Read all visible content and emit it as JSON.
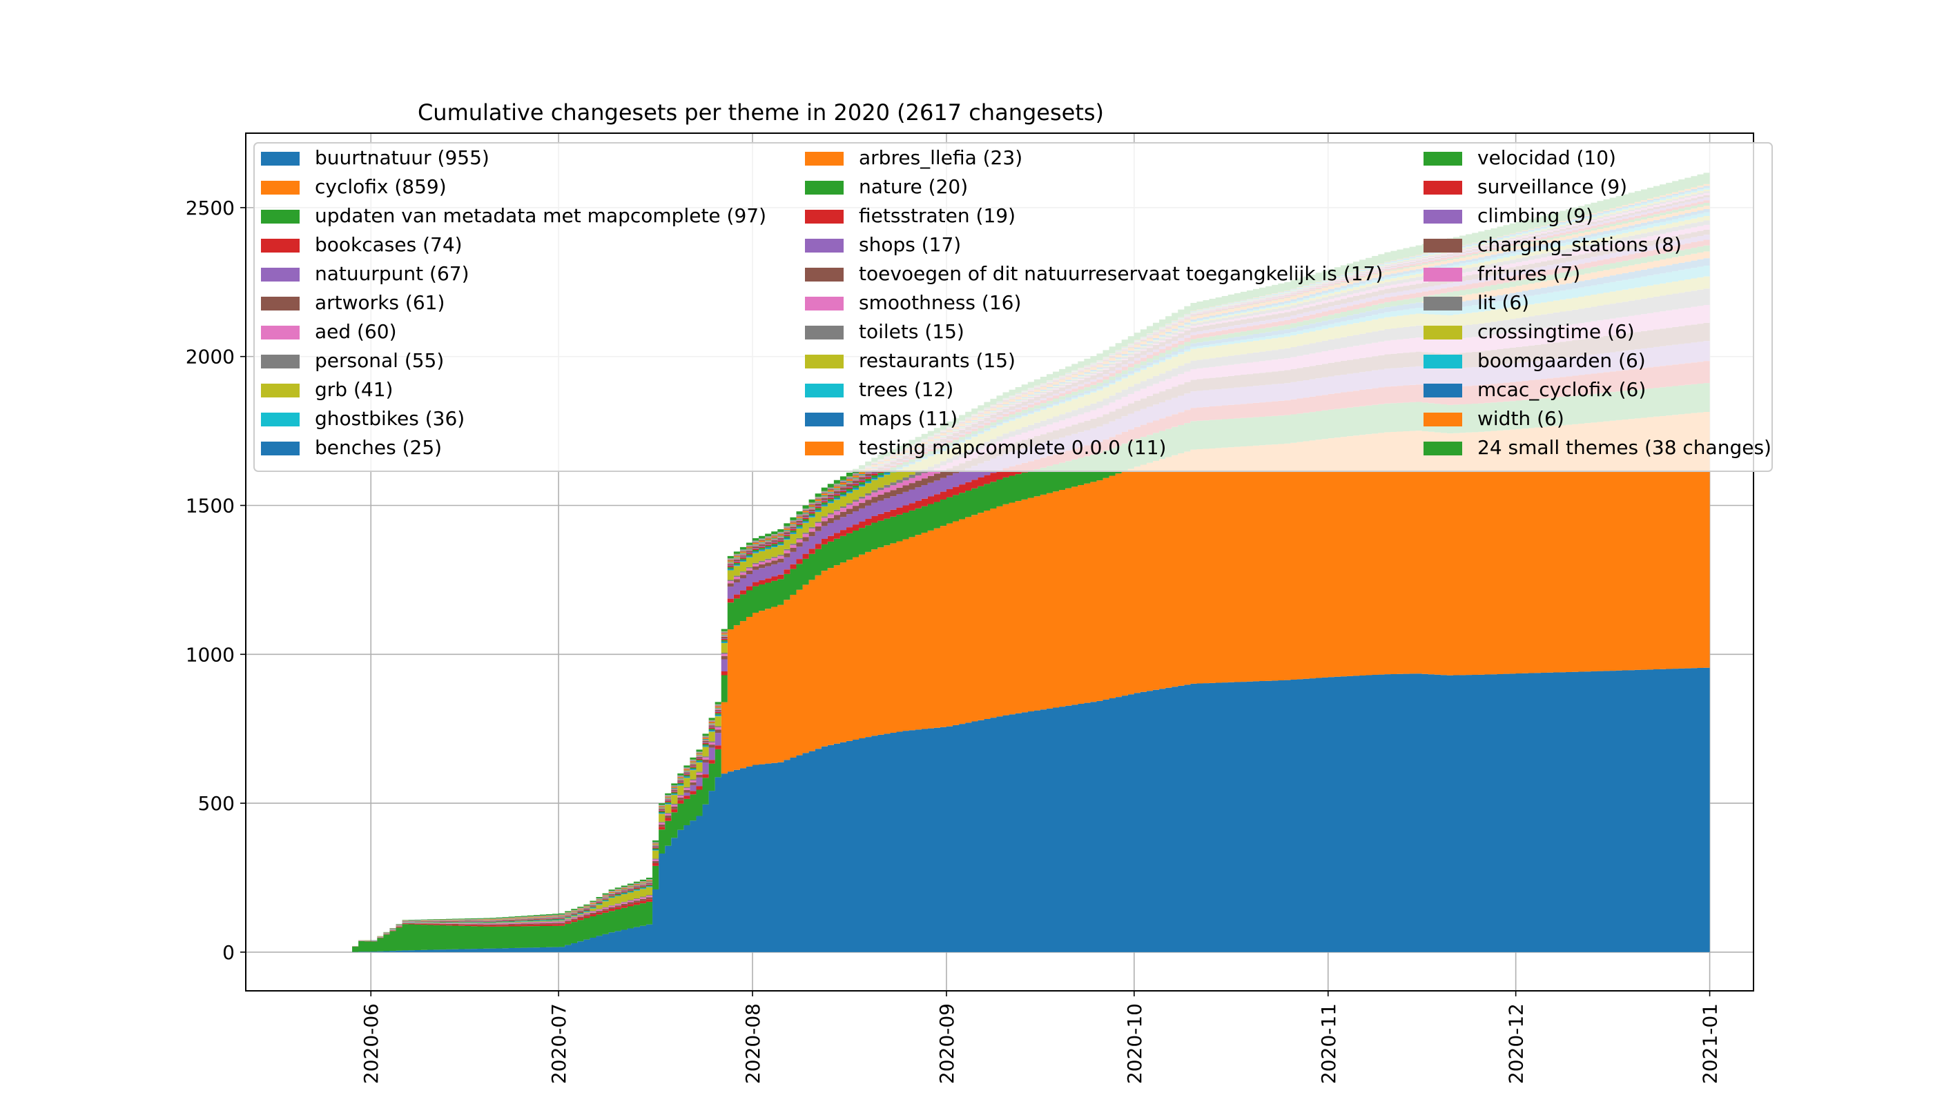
{
  "chart_data": {
    "type": "area",
    "stacked": true,
    "title": "Cumulative changesets per theme in 2020 (2617 changesets)",
    "xlabel": "",
    "ylabel": "",
    "x_start": "2020-05-28",
    "x_end": "2020-12-31",
    "xlim": [
      "2020-05-12",
      "2021-01-08"
    ],
    "ylim": [
      -130,
      2750
    ],
    "x_ticks": [
      "2020-06-01",
      "2020-07-01",
      "2020-08-01",
      "2020-09-01",
      "2020-10-01",
      "2020-11-01",
      "2020-12-01",
      "2021-01-01"
    ],
    "x_tick_labels": [
      "2020-06",
      "2020-07",
      "2020-08",
      "2020-09",
      "2020-10",
      "2020-11",
      "2020-12",
      "2021-01"
    ],
    "y_ticks": [
      0,
      500,
      1000,
      1500,
      2000,
      2500
    ],
    "grid": true,
    "legend": "top, three columns",
    "total_profile": [
      [
        "2020-05-28",
        0
      ],
      [
        "2020-05-30",
        40
      ],
      [
        "2020-06-01",
        40
      ],
      [
        "2020-06-06",
        108
      ],
      [
        "2020-06-20",
        115
      ],
      [
        "2020-07-01",
        130
      ],
      [
        "2020-07-05",
        160
      ],
      [
        "2020-07-09",
        210
      ],
      [
        "2020-07-15",
        250
      ],
      [
        "2020-07-17",
        500
      ],
      [
        "2020-07-20",
        600
      ],
      [
        "2020-07-23",
        680
      ],
      [
        "2020-07-26",
        840
      ],
      [
        "2020-07-28",
        1330
      ],
      [
        "2020-08-01",
        1390
      ],
      [
        "2020-08-05",
        1420
      ],
      [
        "2020-08-09",
        1500
      ],
      [
        "2020-08-12",
        1560
      ],
      [
        "2020-08-20",
        1660
      ],
      [
        "2020-08-30",
        1760
      ],
      [
        "2020-09-10",
        1880
      ],
      [
        "2020-09-25",
        2010
      ],
      [
        "2020-10-01",
        2080
      ],
      [
        "2020-10-10",
        2180
      ],
      [
        "2020-10-25",
        2250
      ],
      [
        "2020-11-10",
        2350
      ],
      [
        "2020-11-25",
        2420
      ],
      [
        "2020-12-10",
        2500
      ],
      [
        "2020-12-31",
        2617
      ]
    ],
    "series": [
      {
        "name": "buurtnatuur (955)",
        "total": 955,
        "color": "#1f77b4",
        "profile": [
          [
            "2020-05-28",
            0
          ],
          [
            "2020-07-01",
            20
          ],
          [
            "2020-07-09",
            80
          ],
          [
            "2020-07-15",
            110
          ],
          [
            "2020-07-17",
            370
          ],
          [
            "2020-07-23",
            470
          ],
          [
            "2020-07-27",
            600
          ],
          [
            "2020-07-28",
            610
          ],
          [
            "2020-08-01",
            640
          ],
          [
            "2020-08-09",
            700
          ],
          [
            "2020-09-01",
            790
          ],
          [
            "2020-10-01",
            870
          ],
          [
            "2020-11-01",
            910
          ],
          [
            "2020-12-01",
            935
          ],
          [
            "2020-12-31",
            955
          ]
        ]
      },
      {
        "name": "cyclofix (859)",
        "total": 859,
        "color": "#ff7f0e",
        "profile": [
          [
            "2020-05-28",
            0
          ],
          [
            "2020-07-26",
            0
          ],
          [
            "2020-07-28",
            480
          ],
          [
            "2020-08-01",
            520
          ],
          [
            "2020-08-10",
            600
          ],
          [
            "2020-08-25",
            660
          ],
          [
            "2020-09-01",
            710
          ],
          [
            "2020-10-01",
            760
          ],
          [
            "2020-11-01",
            790
          ],
          [
            "2020-12-01",
            820
          ],
          [
            "2020-12-31",
            859
          ]
        ]
      },
      {
        "name": "updaten van metadata met mapcomplete (97)",
        "total": 97,
        "color": "#2ca02c",
        "profile": [
          [
            "2020-05-28",
            0
          ],
          [
            "2020-05-30",
            30
          ],
          [
            "2020-06-06",
            82
          ],
          [
            "2020-07-01",
            82
          ],
          [
            "2020-07-05",
            85
          ],
          [
            "2020-07-15",
            90
          ],
          [
            "2020-12-31",
            97
          ]
        ]
      },
      {
        "name": "bookcases (74)",
        "total": 74,
        "color": "#d62728",
        "profile": [
          [
            "2020-05-28",
            0
          ],
          [
            "2020-07-15",
            10
          ],
          [
            "2020-08-01",
            14
          ],
          [
            "2020-09-01",
            28
          ],
          [
            "2020-10-01",
            40
          ],
          [
            "2020-11-01",
            52
          ],
          [
            "2020-12-01",
            64
          ],
          [
            "2020-12-31",
            74
          ]
        ]
      },
      {
        "name": "natuurpunt (67)",
        "total": 67,
        "color": "#9467bd",
        "profile": [
          [
            "2020-05-28",
            0
          ],
          [
            "2020-07-20",
            0
          ],
          [
            "2020-07-24",
            40
          ],
          [
            "2020-08-15",
            45
          ],
          [
            "2020-09-01",
            48
          ],
          [
            "2020-10-01",
            53
          ],
          [
            "2020-11-01",
            58
          ],
          [
            "2020-12-31",
            67
          ]
        ]
      },
      {
        "name": "artworks (61)",
        "total": 61,
        "color": "#8c564b",
        "profile": [
          [
            "2020-05-28",
            0
          ],
          [
            "2020-07-01",
            5
          ],
          [
            "2020-08-01",
            12
          ],
          [
            "2020-09-01",
            25
          ],
          [
            "2020-10-01",
            35
          ],
          [
            "2020-11-01",
            45
          ],
          [
            "2020-12-01",
            53
          ],
          [
            "2020-12-31",
            61
          ]
        ]
      },
      {
        "name": "aed (60)",
        "total": 60,
        "color": "#e377c2",
        "profile": [
          [
            "2020-05-28",
            0
          ],
          [
            "2020-08-01",
            8
          ],
          [
            "2020-09-01",
            20
          ],
          [
            "2020-10-01",
            32
          ],
          [
            "2020-11-01",
            42
          ],
          [
            "2020-12-01",
            52
          ],
          [
            "2020-12-31",
            60
          ]
        ]
      },
      {
        "name": "personal (55)",
        "total": 55,
        "color": "#7f7f7f",
        "profile": [
          [
            "2020-05-28",
            0
          ],
          [
            "2020-08-15",
            5
          ],
          [
            "2020-09-01",
            15
          ],
          [
            "2020-10-01",
            25
          ],
          [
            "2020-11-01",
            35
          ],
          [
            "2020-12-01",
            45
          ],
          [
            "2020-12-31",
            55
          ]
        ]
      },
      {
        "name": "grb (41)",
        "total": 41,
        "color": "#bcbd22",
        "profile": [
          [
            "2020-05-28",
            0
          ],
          [
            "2020-07-05",
            3
          ],
          [
            "2020-07-09",
            30
          ],
          [
            "2020-08-01",
            33
          ],
          [
            "2020-09-01",
            36
          ],
          [
            "2020-10-01",
            38
          ],
          [
            "2020-12-31",
            41
          ]
        ]
      },
      {
        "name": "ghostbikes (36)",
        "total": 36,
        "color": "#17becf",
        "profile": [
          [
            "2020-05-28",
            0
          ],
          [
            "2020-10-01",
            5
          ],
          [
            "2020-11-01",
            12
          ],
          [
            "2020-12-01",
            28
          ],
          [
            "2020-12-31",
            36
          ]
        ]
      },
      {
        "name": "benches (25)",
        "total": 25,
        "color": "#1f77b4",
        "profile": [
          [
            "2020-05-28",
            0
          ],
          [
            "2020-09-01",
            5
          ],
          [
            "2020-10-01",
            10
          ],
          [
            "2020-11-01",
            15
          ],
          [
            "2020-12-01",
            20
          ],
          [
            "2020-12-31",
            25
          ]
        ]
      },
      {
        "name": "arbres_llefia (23)",
        "total": 23,
        "color": "#ff7f0e",
        "profile": [
          [
            "2020-05-28",
            0
          ],
          [
            "2020-11-15",
            0
          ],
          [
            "2020-11-20",
            20
          ],
          [
            "2020-12-31",
            23
          ]
        ]
      },
      {
        "name": "nature (20)",
        "total": 20,
        "color": "#2ca02c",
        "profile": [
          [
            "2020-05-28",
            0
          ],
          [
            "2020-08-01",
            5
          ],
          [
            "2020-09-01",
            10
          ],
          [
            "2020-10-01",
            13
          ],
          [
            "2020-11-01",
            16
          ],
          [
            "2020-12-31",
            20
          ]
        ]
      },
      {
        "name": "fietsstraten (19)",
        "total": 19,
        "color": "#d62728",
        "profile": [
          [
            "2020-05-28",
            0
          ],
          [
            "2020-08-15",
            5
          ],
          [
            "2020-09-15",
            10
          ],
          [
            "2020-10-15",
            14
          ],
          [
            "2020-12-31",
            19
          ]
        ]
      },
      {
        "name": "shops (17)",
        "total": 17,
        "color": "#9467bd",
        "profile": [
          [
            "2020-05-28",
            0
          ],
          [
            "2020-09-01",
            4
          ],
          [
            "2020-10-01",
            8
          ],
          [
            "2020-11-01",
            12
          ],
          [
            "2020-12-31",
            17
          ]
        ]
      },
      {
        "name": "toevoegen of dit natuurreservaat toegangkelijk is (17)",
        "total": 17,
        "color": "#8c564b",
        "profile": [
          [
            "2020-05-28",
            0
          ],
          [
            "2020-08-01",
            5
          ],
          [
            "2020-09-01",
            12
          ],
          [
            "2020-10-01",
            15
          ],
          [
            "2020-12-31",
            17
          ]
        ]
      },
      {
        "name": "smoothness (16)",
        "total": 16,
        "color": "#e377c2",
        "profile": [
          [
            "2020-05-28",
            0
          ],
          [
            "2020-10-01",
            4
          ],
          [
            "2020-11-01",
            9
          ],
          [
            "2020-12-01",
            13
          ],
          [
            "2020-12-31",
            16
          ]
        ]
      },
      {
        "name": "toilets (15)",
        "total": 15,
        "color": "#7f7f7f",
        "profile": [
          [
            "2020-05-28",
            0
          ],
          [
            "2020-09-01",
            3
          ],
          [
            "2020-10-01",
            7
          ],
          [
            "2020-11-01",
            11
          ],
          [
            "2020-12-31",
            15
          ]
        ]
      },
      {
        "name": "restaurants (15)",
        "total": 15,
        "color": "#bcbd22",
        "profile": [
          [
            "2020-05-28",
            0
          ],
          [
            "2020-10-01",
            3
          ],
          [
            "2020-11-01",
            8
          ],
          [
            "2020-12-01",
            12
          ],
          [
            "2020-12-31",
            15
          ]
        ]
      },
      {
        "name": "trees (12)",
        "total": 12,
        "color": "#17becf",
        "profile": [
          [
            "2020-05-28",
            0
          ],
          [
            "2020-10-01",
            2
          ],
          [
            "2020-11-01",
            6
          ],
          [
            "2020-12-01",
            9
          ],
          [
            "2020-12-31",
            12
          ]
        ]
      },
      {
        "name": "maps (11)",
        "total": 11,
        "color": "#1f77b4",
        "profile": [
          [
            "2020-05-28",
            0
          ],
          [
            "2020-09-01",
            2
          ],
          [
            "2020-10-01",
            5
          ],
          [
            "2020-11-01",
            8
          ],
          [
            "2020-12-31",
            11
          ]
        ]
      },
      {
        "name": "testing mapcomplete 0.0.0 (11)",
        "total": 11,
        "color": "#ff7f0e",
        "profile": [
          [
            "2020-05-28",
            0
          ],
          [
            "2020-08-01",
            4
          ],
          [
            "2020-09-01",
            8
          ],
          [
            "2020-12-31",
            11
          ]
        ]
      },
      {
        "name": "velocidad (10)",
        "total": 10,
        "color": "#2ca02c",
        "profile": [
          [
            "2020-05-28",
            0
          ],
          [
            "2020-11-01",
            2
          ],
          [
            "2020-12-01",
            6
          ],
          [
            "2020-12-31",
            10
          ]
        ]
      },
      {
        "name": "surveillance (9)",
        "total": 9,
        "color": "#d62728",
        "profile": [
          [
            "2020-05-28",
            0
          ],
          [
            "2020-10-01",
            2
          ],
          [
            "2020-11-01",
            5
          ],
          [
            "2020-12-31",
            9
          ]
        ]
      },
      {
        "name": "climbing (9)",
        "total": 9,
        "color": "#9467bd",
        "profile": [
          [
            "2020-05-28",
            0
          ],
          [
            "2020-11-01",
            2
          ],
          [
            "2020-12-01",
            5
          ],
          [
            "2020-12-31",
            9
          ]
        ]
      },
      {
        "name": "charging_stations (8)",
        "total": 8,
        "color": "#8c564b",
        "profile": [
          [
            "2020-05-28",
            0
          ],
          [
            "2020-10-01",
            2
          ],
          [
            "2020-11-01",
            4
          ],
          [
            "2020-12-31",
            8
          ]
        ]
      },
      {
        "name": "fritures (7)",
        "total": 7,
        "color": "#e377c2",
        "profile": [
          [
            "2020-05-28",
            0
          ],
          [
            "2020-11-01",
            2
          ],
          [
            "2020-12-31",
            7
          ]
        ]
      },
      {
        "name": "lit (6)",
        "total": 6,
        "color": "#7f7f7f",
        "profile": [
          [
            "2020-05-28",
            0
          ],
          [
            "2020-10-01",
            2
          ],
          [
            "2020-12-31",
            6
          ]
        ]
      },
      {
        "name": "crossingtime (6)",
        "total": 6,
        "color": "#bcbd22",
        "profile": [
          [
            "2020-05-28",
            0
          ],
          [
            "2020-11-01",
            2
          ],
          [
            "2020-12-31",
            6
          ]
        ]
      },
      {
        "name": "boomgaarden (6)",
        "total": 6,
        "color": "#17becf",
        "profile": [
          [
            "2020-05-28",
            0
          ],
          [
            "2020-10-01",
            1
          ],
          [
            "2020-12-31",
            6
          ]
        ]
      },
      {
        "name": "mcac_cyclofix (6)",
        "total": 6,
        "color": "#1f77b4",
        "profile": [
          [
            "2020-05-28",
            0
          ],
          [
            "2020-11-01",
            2
          ],
          [
            "2020-12-31",
            6
          ]
        ]
      },
      {
        "name": "width (6)",
        "total": 6,
        "color": "#ff7f0e",
        "profile": [
          [
            "2020-05-28",
            0
          ],
          [
            "2020-12-01",
            2
          ],
          [
            "2020-12-31",
            6
          ]
        ]
      },
      {
        "name": "24 small themes (38 changes)",
        "total": 38,
        "color": "#2ca02c",
        "profile": [
          [
            "2020-05-28",
            0
          ],
          [
            "2020-08-01",
            8
          ],
          [
            "2020-09-01",
            18
          ],
          [
            "2020-10-01",
            24
          ],
          [
            "2020-11-01",
            30
          ],
          [
            "2020-12-01",
            34
          ],
          [
            "2020-12-31",
            38
          ]
        ]
      }
    ]
  }
}
